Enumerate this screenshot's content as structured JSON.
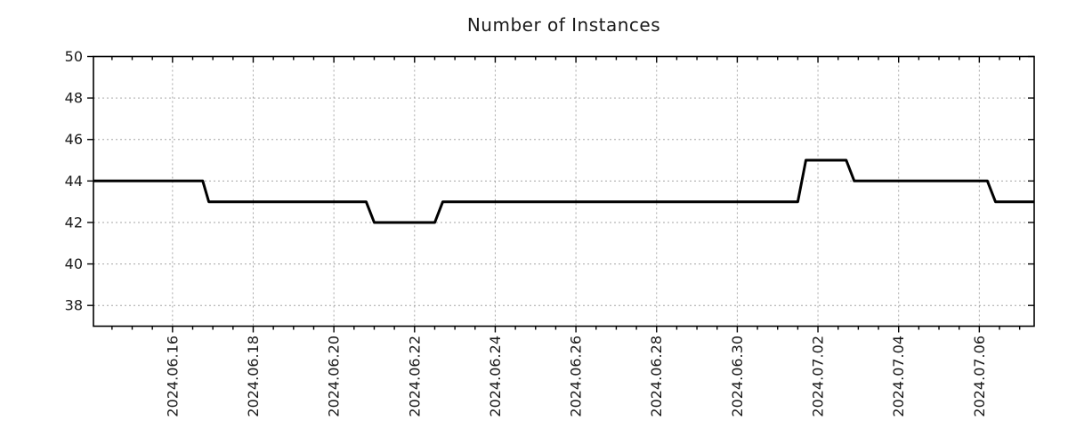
{
  "title": "Number of Instances",
  "style": {
    "line_color": "#000000",
    "grid_color": "#a6a6a6",
    "text_color": "#1a1a1a",
    "frame_color": "#000000",
    "background_color": "#ffffff"
  },
  "chart_data": {
    "type": "line",
    "title": "Number of Instances",
    "grid": "dotted",
    "legend": false,
    "x_axis": {
      "kind": "time",
      "unit_note": "day offsets relative to 2024-06-16 00:00",
      "range": [
        -1.96,
        21.36
      ],
      "major_ticks": [
        0,
        2,
        4,
        6,
        8,
        10,
        12,
        14,
        16,
        18,
        20
      ],
      "major_tick_labels": [
        "2024.06.16",
        "2024.06.18",
        "2024.06.20",
        "2024.06.22",
        "2024.06.24",
        "2024.06.26",
        "2024.06.28",
        "2024.06.30",
        "2024.07.02",
        "2024.07.04",
        "2024.07.06"
      ],
      "minor_tick_step": 0.5,
      "label_rotation_deg": -90
    },
    "y_axis": {
      "range": [
        37,
        50
      ],
      "major_ticks": [
        38,
        40,
        42,
        44,
        46,
        48,
        50
      ],
      "major_tick_labels": [
        "38",
        "40",
        "42",
        "44",
        "46",
        "48",
        "50"
      ]
    },
    "series": [
      {
        "name": "Number of Instances",
        "color": "#000000",
        "line_width": 3,
        "points": [
          [
            -1.96,
            44
          ],
          [
            0.75,
            44
          ],
          [
            0.9,
            43
          ],
          [
            4.8,
            43
          ],
          [
            5.0,
            42
          ],
          [
            6.5,
            42
          ],
          [
            6.7,
            43
          ],
          [
            15.5,
            43
          ],
          [
            15.7,
            45
          ],
          [
            16.7,
            45
          ],
          [
            16.9,
            44
          ],
          [
            20.2,
            44
          ],
          [
            20.4,
            43
          ],
          [
            21.36,
            43
          ]
        ]
      }
    ],
    "step_values_by_period": [
      {
        "from": "2024.06.14",
        "to": "2024.06.16 ~18h",
        "instances": 44
      },
      {
        "from": "2024.06.16 ~22h",
        "to": "2024.06.20 ~19h",
        "instances": 43
      },
      {
        "from": "2024.06.21 ~00h",
        "to": "2024.06.22 ~12h",
        "instances": 42
      },
      {
        "from": "2024.06.22 ~17h",
        "to": "2024.07.01 ~12h",
        "instances": 43
      },
      {
        "from": "2024.07.01 ~17h",
        "to": "2024.07.02 ~17h",
        "instances": 45
      },
      {
        "from": "2024.07.02 ~22h",
        "to": "2024.07.06 ~05h",
        "instances": 44
      },
      {
        "from": "2024.07.06 ~10h",
        "to": "2024.07.07 ~09h",
        "instances": 43
      }
    ]
  }
}
